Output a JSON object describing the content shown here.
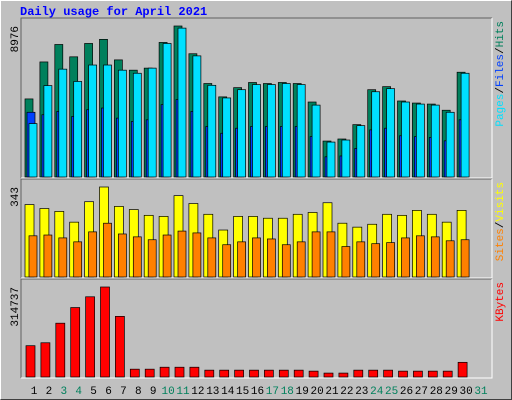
{
  "separator": "/",
  "chart_data": [
    {
      "type": "bar",
      "title": "Daily usage for April 2021",
      "ylim": [
        0,
        8976
      ],
      "yticks": [
        8976
      ],
      "series": [
        {
          "name": "Hits",
          "color": "#00805c",
          "values": [
            4641,
            6839,
            7877,
            7144,
            7938,
            8182,
            6961,
            6350,
            6472,
            7999,
            8976,
            7327,
            5557,
            4763,
            5312,
            5618,
            5557,
            5618,
            5557,
            4457,
            2137,
            2259,
            3114,
            5190,
            5373,
            4518,
            4396,
            4335,
            3969,
            6228,
            null
          ]
        },
        {
          "name": "Files",
          "color": "#0040ff",
          "values": [
            3847,
            3700,
            3900,
            3600,
            4000,
            4100,
            3500,
            3300,
            3400,
            4300,
            4600,
            3900,
            3000,
            2600,
            2900,
            3000,
            3000,
            3000,
            3000,
            2400,
            1200,
            1250,
            1700,
            2800,
            2900,
            2450,
            2400,
            2350,
            2150,
            3400,
            null
          ]
        },
        {
          "name": "Pages",
          "color": "#00e0ff",
          "values": [
            3175,
            5434,
            6411,
            5679,
            6656,
            6656,
            6350,
            6167,
            6472,
            7938,
            8850,
            7200,
            5450,
            4700,
            5190,
            5495,
            5495,
            5557,
            5495,
            4274,
            2076,
            2198,
            3053,
            5068,
            5251,
            4457,
            4335,
            4274,
            3847,
            6167,
            null
          ]
        }
      ]
    },
    {
      "type": "bar",
      "ylim": [
        0,
        343
      ],
      "yticks": [
        343
      ],
      "series": [
        {
          "name": "Visits",
          "color": "#ffff00",
          "values": [
            276,
            261,
            250,
            209,
            287,
            343,
            269,
            257,
            235,
            231,
            310,
            280,
            239,
            179,
            231,
            231,
            224,
            224,
            239,
            246,
            283,
            205,
            190,
            201,
            239,
            235,
            254,
            239,
            209,
            254,
            null
          ]
        },
        {
          "name": "Sites",
          "color": "#ff8000",
          "values": [
            157,
            160,
            149,
            134,
            172,
            205,
            164,
            153,
            142,
            160,
            175,
            168,
            149,
            123,
            134,
            149,
            145,
            123,
            134,
            172,
            172,
            116,
            134,
            127,
            131,
            149,
            157,
            153,
            138,
            142,
            null
          ]
        }
      ]
    },
    {
      "type": "bar",
      "ylim": [
        0,
        314737
      ],
      "yticks": [
        314737
      ],
      "categories": [
        "1",
        "2",
        "3",
        "4",
        "5",
        "6",
        "7",
        "8",
        "9",
        "10",
        "11",
        "12",
        "13",
        "14",
        "15",
        "16",
        "17",
        "18",
        "19",
        "20",
        "21",
        "22",
        "23",
        "24",
        "25",
        "26",
        "27",
        "28",
        "29",
        "30",
        "31"
      ],
      "category_colors": [
        "#000000",
        "#000000",
        "#00805c",
        "#00805c",
        "#000000",
        "#000000",
        "#000000",
        "#000000",
        "#000000",
        "#00805c",
        "#00805c",
        "#000000",
        "#000000",
        "#000000",
        "#000000",
        "#000000",
        "#00805c",
        "#00805c",
        "#000000",
        "#000000",
        "#000000",
        "#000000",
        "#000000",
        "#00805c",
        "#00805c",
        "#000000",
        "#000000",
        "#000000",
        "#000000",
        "#000000",
        "#00805c"
      ],
      "series": [
        {
          "name": "KBytes",
          "color": "#ff0000",
          "values": [
            109472,
            119735,
            188155,
            242891,
            280522,
            314737,
            212102,
            27368,
            27368,
            34210,
            34210,
            34210,
            23947,
            23947,
            23947,
            23947,
            23947,
            23947,
            23947,
            20526,
            13684,
            13684,
            23947,
            23947,
            23947,
            20526,
            20526,
            20526,
            20526,
            51315,
            null
          ]
        }
      ]
    }
  ]
}
